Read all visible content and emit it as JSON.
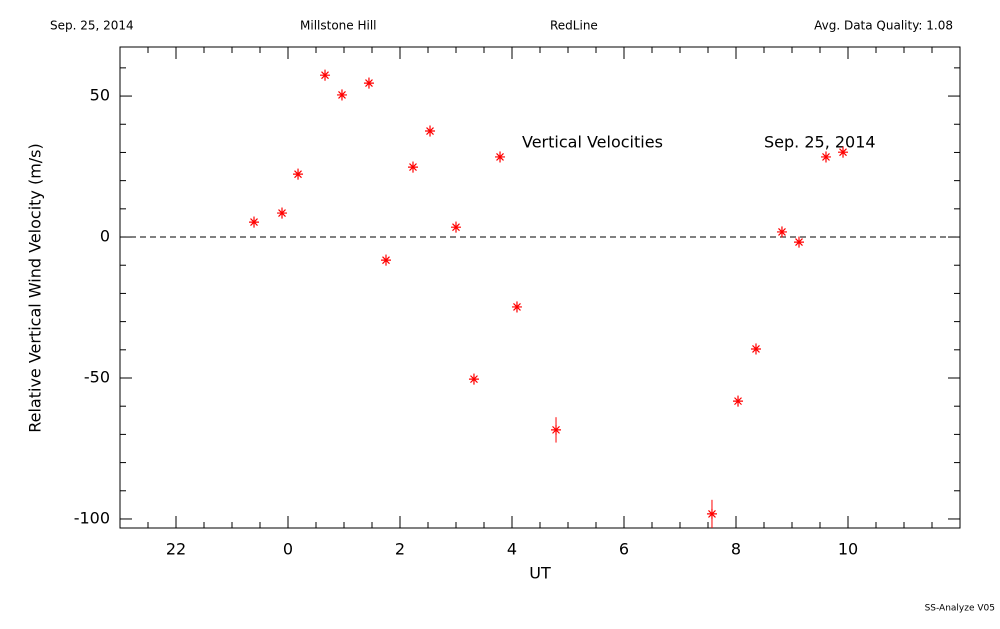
{
  "header": {
    "date": "Sep. 25, 2014",
    "site": "Millstone Hill",
    "line": "RedLine",
    "quality": "Avg. Data Quality: 1.08"
  },
  "footer": "SS-Analyze V05",
  "chart_data": {
    "type": "scatter",
    "x_label": "UT",
    "y_label": "Relative Vertical Wind Velocity (m/s)",
    "annotations": [
      "Vertical Velocities",
      "Sep. 25, 2014"
    ],
    "x": [
      -0.607,
      -0.107,
      0.179,
      0.661,
      0.964,
      1.446,
      1.75,
      2.232,
      2.536,
      3.0,
      3.321,
      3.786,
      4.089,
      4.786,
      7.571,
      8.036,
      8.357,
      8.821,
      9.125,
      9.607,
      9.911
    ],
    "values": [
      5.3,
      8.5,
      22.3,
      57.4,
      50.4,
      54.6,
      -8.2,
      24.8,
      37.6,
      3.5,
      -50.4,
      28.4,
      -24.8,
      -68.4,
      -98.2,
      -58.2,
      -39.7,
      1.8,
      -1.8,
      28.4,
      30.1
    ],
    "errors": [
      2,
      2,
      2,
      2,
      2,
      2,
      2,
      2,
      2,
      2,
      2,
      2,
      2,
      4.5,
      5,
      2,
      2,
      2,
      2,
      2,
      2
    ],
    "color": "#ff0000",
    "xlim": [
      -3,
      12
    ],
    "ylim": [
      -103.2,
      67.4
    ],
    "xticks": [
      {
        "value": -2,
        "label": "22"
      },
      0,
      2,
      4,
      6,
      8,
      10
    ],
    "yticks": [
      -100,
      -50,
      0,
      50
    ],
    "xminorticks": [
      -2.5,
      -1.5,
      -1,
      -0.5,
      0.5,
      1,
      1.5,
      2.5,
      3,
      3.5,
      4.5,
      5,
      5.5,
      6.5,
      7,
      7.5,
      8.5,
      9,
      9.5,
      10.5,
      11,
      11.5
    ],
    "yminorticks": [
      -90,
      -80,
      -70,
      -60,
      -40,
      -30,
      -20,
      -10,
      10,
      20,
      30,
      40,
      60
    ],
    "hline": 0
  }
}
